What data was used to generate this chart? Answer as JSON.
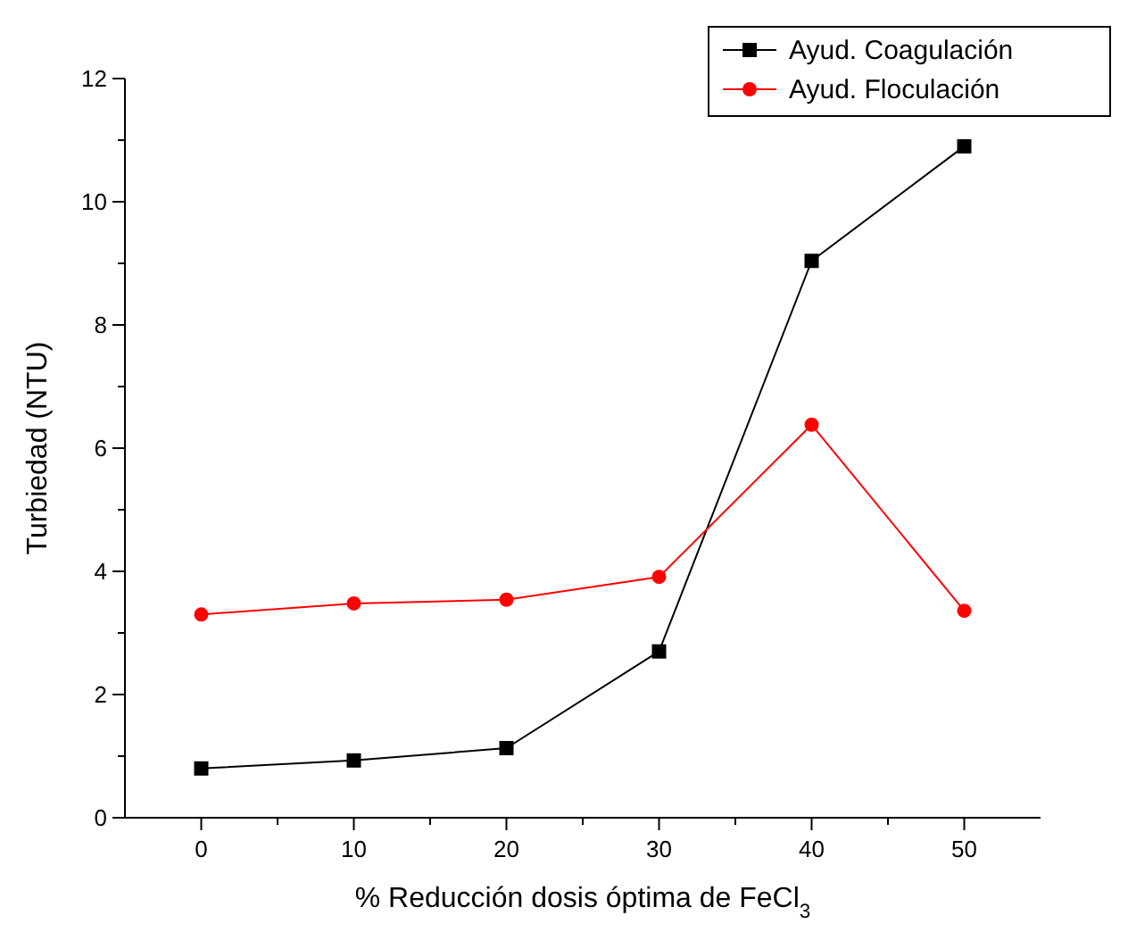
{
  "chart_data": {
    "type": "line",
    "xlabel": "% Reducción dosis óptima de FeCl$_{3}$",
    "ylabel": "Turbiedad (NTU)",
    "x": [
      0,
      10,
      20,
      30,
      40,
      50
    ],
    "series": [
      {
        "name": "Ayud. Coagulación",
        "color": "#000000",
        "marker": "square",
        "values": [
          0.8,
          0.93,
          1.13,
          2.7,
          9.04,
          10.9
        ]
      },
      {
        "name": "Ayud. Floculación",
        "color": "#ff0000",
        "marker": "circle",
        "values": [
          3.3,
          3.48,
          3.54,
          3.91,
          6.38,
          3.36
        ]
      }
    ],
    "xlim": [
      -5,
      55
    ],
    "ylim": [
      0,
      12
    ],
    "xticks": [
      0,
      10,
      20,
      30,
      40,
      50
    ],
    "yticks": [
      0,
      2,
      4,
      6,
      8,
      10,
      12
    ],
    "grid": false,
    "legend": "top right",
    "line_style": "solid"
  }
}
